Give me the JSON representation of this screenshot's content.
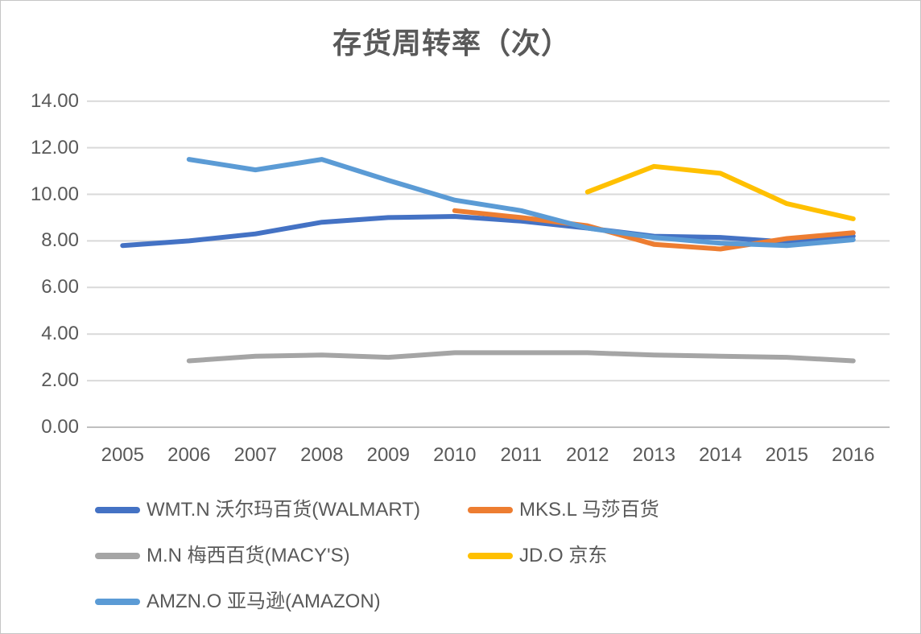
{
  "page": {
    "background": "#ffffff",
    "border_color": "#c6c6c6"
  },
  "chart_data": {
    "type": "line",
    "title": "存货周转率（次）",
    "xlabel": "",
    "ylabel": "",
    "categories": [
      "2005",
      "2006",
      "2007",
      "2008",
      "2009",
      "2010",
      "2011",
      "2012",
      "2013",
      "2014",
      "2015",
      "2016"
    ],
    "series": [
      {
        "name": "WMT.N 沃尔玛百货(WALMART)",
        "color": "#4472C4",
        "values": [
          7.8,
          8.0,
          8.3,
          8.8,
          9.0,
          9.05,
          8.85,
          8.55,
          8.2,
          8.15,
          7.95,
          8.2
        ]
      },
      {
        "name": "MKS.L 马莎百货",
        "color": "#ED7D31",
        "values": [
          null,
          null,
          null,
          null,
          null,
          9.3,
          9.0,
          8.65,
          7.85,
          7.65,
          8.1,
          8.35
        ]
      },
      {
        "name": "M.N 梅西百货(MACY'S)",
        "color": "#A5A5A5",
        "values": [
          null,
          2.85,
          3.05,
          3.1,
          3.0,
          3.2,
          3.2,
          3.2,
          3.1,
          3.05,
          3.0,
          2.85
        ]
      },
      {
        "name": "JD.O 京东",
        "color": "#FFC000",
        "values": [
          null,
          null,
          null,
          null,
          null,
          null,
          null,
          10.1,
          11.2,
          10.9,
          9.6,
          8.95
        ]
      },
      {
        "name": "AMZN.O 亚马逊(AMAZON)",
        "color": "#5B9BD5",
        "values": [
          null,
          11.5,
          11.05,
          11.5,
          10.6,
          9.75,
          9.3,
          8.55,
          8.15,
          7.9,
          7.8,
          8.05
        ]
      }
    ],
    "ylim": [
      0,
      14
    ],
    "y_tick_step": 2,
    "y_tick_labels": [
      "0.00",
      "2.00",
      "4.00",
      "6.00",
      "8.00",
      "10.00",
      "12.00",
      "14.00"
    ],
    "grid": true,
    "legend_position": "bottom",
    "gridline_color": "#D9D9D9",
    "axis_line_color": "#BFBFBF",
    "text_color": "#595959"
  }
}
